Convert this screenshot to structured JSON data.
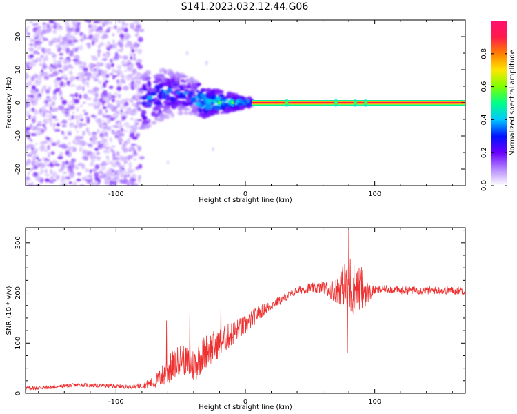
{
  "title": "S141.2023.032.12.44.G06",
  "chart_data": [
    {
      "type": "heatmap",
      "xlabel": "Height of straight line (km)",
      "ylabel": "Frequency (Hz)",
      "xlim": [
        -170,
        170
      ],
      "ylim": [
        -25,
        25
      ],
      "xticks": [
        -100,
        0,
        100
      ],
      "yticks": [
        -20,
        -10,
        0,
        10,
        20
      ],
      "grid": false,
      "colormap": [
        "#ffffff",
        "#b488ff",
        "#6a00ff",
        "#0011ff",
        "#00c8ff",
        "#00ff88",
        "#7dff00",
        "#ffe600",
        "#ff8000",
        "#ff1a4a",
        "#ff0f6e"
      ],
      "colorbar": {
        "label": "Normalized spectral amplitude",
        "range": [
          0,
          1
        ],
        "ticks": [
          "0.0",
          "0.2",
          "0.4",
          "0.6",
          "0.8"
        ]
      },
      "features": {
        "noise_region_x": [
          -170,
          -80
        ],
        "transition_region_x": [
          -80,
          5
        ],
        "carrier_line_x": [
          5,
          170
        ],
        "carrier_frequency_hz": 0,
        "carrier_amplitude": 0.9,
        "bright_spots_x": [
          -20,
          -10,
          32,
          70,
          85,
          93
        ]
      }
    },
    {
      "type": "line",
      "xlabel": "Height of straight line (km)",
      "ylabel": "SNR (10 * v/v)",
      "xlim": [
        -170,
        170
      ],
      "ylim": [
        0,
        330
      ],
      "xticks": [
        -100,
        0,
        100
      ],
      "yticks": [
        0,
        100,
        200,
        300
      ],
      "grid": false,
      "series": [
        {
          "color": "#ee3030",
          "x": [
            -170,
            -150,
            -130,
            -110,
            -90,
            -80,
            -70,
            -60,
            -50,
            -40,
            -30,
            -20,
            -10,
            0,
            10,
            20,
            30,
            40,
            50,
            60,
            70,
            75,
            80,
            85,
            90,
            95,
            100,
            110,
            120,
            140,
            170
          ],
          "y": [
            10,
            12,
            17,
            15,
            13,
            15,
            22,
            45,
            70,
            55,
            85,
            100,
            120,
            135,
            160,
            175,
            190,
            205,
            210,
            210,
            205,
            215,
            215,
            208,
            208,
            200,
            205,
            208,
            205,
            205,
            205
          ],
          "noise_amplitude": [
            4,
            4,
            4,
            4,
            4,
            6,
            12,
            30,
            30,
            35,
            35,
            30,
            25,
            20,
            15,
            10,
            8,
            8,
            10,
            12,
            25,
            40,
            70,
            50,
            45,
            20,
            8,
            8,
            8,
            8,
            8
          ],
          "peak_points": [
            [
              -61,
              145
            ],
            [
              -43,
              155
            ],
            [
              -19,
              190
            ],
            [
              80,
              330
            ],
            [
              79,
              80
            ]
          ]
        }
      ]
    }
  ]
}
